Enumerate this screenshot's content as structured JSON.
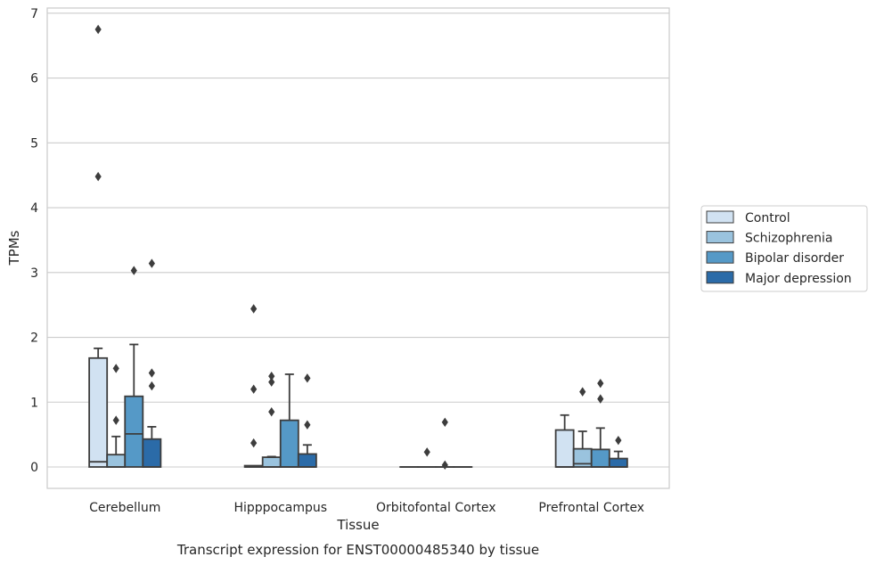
{
  "chart_data": {
    "type": "box",
    "caption": "Transcript expression for ENST00000485340 by tissue",
    "xlabel": "Tissue",
    "ylabel": "TPMs",
    "ylim": [
      -0.33,
      7.08
    ],
    "yticks": [
      0,
      1,
      2,
      3,
      4,
      5,
      6,
      7
    ],
    "grid": "horizontal",
    "legend_position": "right",
    "categories": [
      "Cerebellum",
      "Hipppocampus",
      "Orbitofontal Cortex",
      "Prefrontal Cortex"
    ],
    "series": [
      {
        "name": "Control",
        "color": "#d1e2f2",
        "boxes": [
          {
            "q1": 0.0,
            "median": 0.08,
            "q3": 1.68,
            "whisker_low": 0.0,
            "whisker_high": 1.83,
            "outliers": [
              4.48,
              6.75
            ]
          },
          {
            "q1": 0.0,
            "median": 0.0,
            "q3": 0.02,
            "whisker_low": 0.0,
            "whisker_high": 0.02,
            "outliers": [
              0.37,
              1.2,
              2.44
            ]
          },
          {
            "q1": 0.0,
            "median": 0.0,
            "q3": 0.0,
            "whisker_low": 0.0,
            "whisker_high": 0.0,
            "outliers": []
          },
          {
            "q1": 0.0,
            "median": 0.0,
            "q3": 0.57,
            "whisker_low": 0.0,
            "whisker_high": 0.8,
            "outliers": []
          }
        ]
      },
      {
        "name": "Schizophrenia",
        "color": "#9ac3de",
        "boxes": [
          {
            "q1": 0.0,
            "median": 0.0,
            "q3": 0.19,
            "whisker_low": 0.0,
            "whisker_high": 0.47,
            "outliers": [
              0.72,
              1.52
            ]
          },
          {
            "q1": 0.0,
            "median": 0.0,
            "q3": 0.15,
            "whisker_low": 0.0,
            "whisker_high": 0.16,
            "outliers": [
              0.85,
              1.31,
              1.4
            ]
          },
          {
            "q1": 0.0,
            "median": 0.0,
            "q3": 0.0,
            "whisker_low": 0.0,
            "whisker_high": 0.0,
            "outliers": [
              0.23
            ]
          },
          {
            "q1": 0.0,
            "median": 0.05,
            "q3": 0.28,
            "whisker_low": 0.0,
            "whisker_high": 0.55,
            "outliers": [
              1.16
            ]
          }
        ]
      },
      {
        "name": "Bipolar disorder",
        "color": "#5599c7",
        "boxes": [
          {
            "q1": 0.0,
            "median": 0.51,
            "q3": 1.09,
            "whisker_low": 0.0,
            "whisker_high": 1.89,
            "outliers": [
              3.03
            ]
          },
          {
            "q1": 0.0,
            "median": 0.0,
            "q3": 0.72,
            "whisker_low": 0.0,
            "whisker_high": 1.43,
            "outliers": []
          },
          {
            "q1": 0.0,
            "median": 0.0,
            "q3": 0.0,
            "whisker_low": 0.0,
            "whisker_high": 0.0,
            "outliers": [
              0.03,
              0.69
            ]
          },
          {
            "q1": 0.0,
            "median": 0.0,
            "q3": 0.27,
            "whisker_low": 0.0,
            "whisker_high": 0.6,
            "outliers": [
              1.05,
              1.29
            ]
          }
        ]
      },
      {
        "name": "Major depression",
        "color": "#2b6ba8",
        "boxes": [
          {
            "q1": 0.0,
            "median": 0.0,
            "q3": 0.43,
            "whisker_low": 0.0,
            "whisker_high": 0.62,
            "outliers": [
              1.25,
              1.45,
              3.14
            ]
          },
          {
            "q1": 0.0,
            "median": 0.0,
            "q3": 0.2,
            "whisker_low": 0.0,
            "whisker_high": 0.34,
            "outliers": [
              0.65,
              1.37
            ]
          },
          {
            "q1": 0.0,
            "median": 0.0,
            "q3": 0.0,
            "whisker_low": 0.0,
            "whisker_high": 0.0,
            "outliers": []
          },
          {
            "q1": 0.0,
            "median": 0.0,
            "q3": 0.13,
            "whisker_low": 0.0,
            "whisker_high": 0.24,
            "outliers": [
              0.41
            ]
          }
        ]
      }
    ]
  }
}
